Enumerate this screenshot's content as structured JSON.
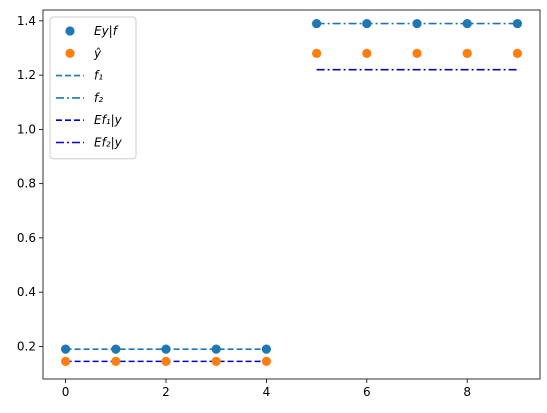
{
  "chart_data": {
    "type": "scatter",
    "xlim": [
      -0.45,
      9.45
    ],
    "ylim": [
      0.08,
      1.44
    ],
    "xticks": [
      0,
      2,
      4,
      6,
      8
    ],
    "xtick_labels": [
      "0",
      "2",
      "4",
      "6",
      "8"
    ],
    "yticks": [
      0.2,
      0.4,
      0.6,
      0.8,
      1.0,
      1.2,
      1.4
    ],
    "ytick_labels": [
      "0.2",
      "0.4",
      "0.6",
      "0.8",
      "1.0",
      "1.2",
      "1.4"
    ],
    "grid": false,
    "legend_position": "upper left",
    "series": [
      {
        "name": "Ey|f",
        "kind": "scatter",
        "color": "#1f77b4",
        "x": [
          0,
          1,
          2,
          3,
          4,
          5,
          6,
          7,
          8,
          9
        ],
        "y": [
          0.19,
          0.19,
          0.19,
          0.19,
          0.19,
          1.39,
          1.39,
          1.39,
          1.39,
          1.39
        ]
      },
      {
        "name": "ŷ",
        "kind": "scatter",
        "color": "#ff7f0e",
        "x": [
          0,
          1,
          2,
          3,
          4,
          5,
          6,
          7,
          8,
          9
        ],
        "y": [
          0.145,
          0.145,
          0.145,
          0.145,
          0.145,
          1.28,
          1.28,
          1.28,
          1.28,
          1.28
        ]
      },
      {
        "name": "f₁",
        "kind": "line",
        "linestyle": "dashed",
        "color": "#1f77b4",
        "x": [
          0,
          1,
          2,
          3,
          4
        ],
        "y": [
          0.19,
          0.19,
          0.19,
          0.19,
          0.19
        ]
      },
      {
        "name": "f₂",
        "kind": "line",
        "linestyle": "dashdot",
        "color": "#1f77b4",
        "x": [
          5,
          6,
          7,
          8,
          9
        ],
        "y": [
          1.39,
          1.39,
          1.39,
          1.39,
          1.39
        ]
      },
      {
        "name": "Ef₁|y",
        "kind": "line",
        "linestyle": "dashed",
        "color": "#0000cd",
        "x": [
          0,
          1,
          2,
          3,
          4
        ],
        "y": [
          0.145,
          0.145,
          0.145,
          0.145,
          0.145
        ]
      },
      {
        "name": "Ef₂|y",
        "kind": "line",
        "linestyle": "dashdot",
        "color": "#0000cd",
        "x": [
          5,
          6,
          7,
          8,
          9
        ],
        "y": [
          1.22,
          1.22,
          1.22,
          1.22,
          1.22
        ]
      }
    ]
  }
}
